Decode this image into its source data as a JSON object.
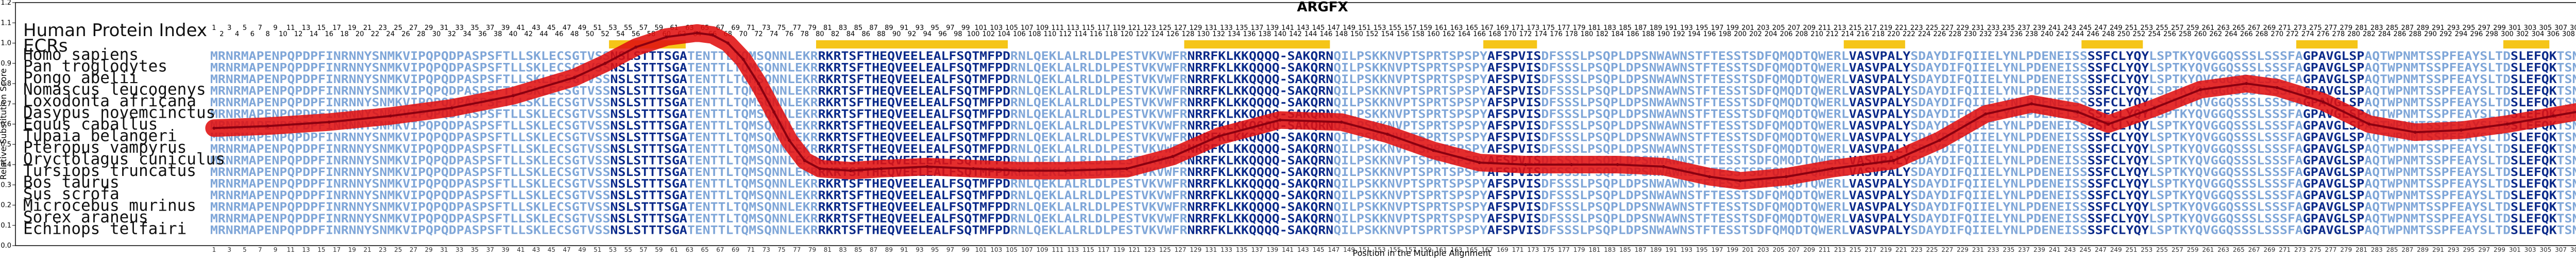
{
  "chart_data": {
    "type": "line",
    "title": "ARGFX",
    "xlabel": "Position in the Multiple Alignment",
    "ylabel": "Relative Substitution Score",
    "ylim": [
      0.0,
      1.2
    ],
    "yticks": [
      "0.0",
      "0.1",
      "0.2",
      "0.3",
      "0.4",
      "0.5",
      "0.6",
      "0.7",
      "0.8",
      "0.9",
      "1.0",
      "1.1",
      "1.2"
    ],
    "xlim": [
      1,
      316
    ],
    "header_labels": [
      "Human Protein Index",
      "ECRs"
    ],
    "species": [
      "Homo sapiens",
      "Pan troglodytes",
      "Pongo abelii",
      "Nomascus leucogenys",
      "Loxodonta africana",
      "Dasypus novemcinctus",
      "Equus caballus",
      "Tupaia belangeri",
      "Pteropus vampyrus",
      "Oryctolagus cuniculus",
      "Tursiops truncatus",
      "Bos taurus",
      "Sus scrofa",
      "Microcebus murinus",
      "Sorex araneus",
      "Echinops telfairi"
    ],
    "ecr_regions": [
      [
        53,
        62
      ],
      [
        80,
        104
      ],
      [
        128,
        146
      ],
      [
        167,
        173
      ],
      [
        214,
        221
      ],
      [
        245,
        252
      ],
      [
        273,
        280
      ],
      [
        300,
        305
      ]
    ],
    "series": [
      {
        "color": "#e01010",
        "x": [
          1,
          8,
          16,
          24,
          32,
          40,
          48,
          52,
          56,
          60,
          64,
          66,
          68,
          70,
          72,
          74,
          76,
          78,
          80,
          84,
          88,
          94,
          100,
          106,
          112,
          120,
          126,
          132,
          140,
          148,
          154,
          160,
          166,
          172,
          178,
          184,
          190,
          196,
          200,
          206,
          212,
          216,
          220,
          226,
          232,
          238,
          244,
          248,
          254,
          260,
          266,
          270,
          276,
          282,
          288,
          294,
          300,
          306,
          312,
          316
        ],
        "y": [
          0.58,
          0.59,
          0.61,
          0.64,
          0.68,
          0.74,
          0.83,
          0.9,
          0.98,
          1.03,
          1.05,
          1.04,
          1.0,
          0.92,
          0.8,
          0.66,
          0.52,
          0.42,
          0.38,
          0.37,
          0.38,
          0.39,
          0.38,
          0.37,
          0.37,
          0.38,
          0.44,
          0.54,
          0.62,
          0.61,
          0.55,
          0.47,
          0.41,
          0.4,
          0.4,
          0.4,
          0.39,
          0.34,
          0.32,
          0.34,
          0.38,
          0.4,
          0.42,
          0.52,
          0.65,
          0.7,
          0.66,
          0.6,
          0.68,
          0.77,
          0.8,
          0.78,
          0.71,
          0.6,
          0.56,
          0.57,
          0.6,
          0.64,
          0.68,
          0.7
        ]
      }
    ],
    "sequences": [
      "MRNRMAPENPQPDPFINRNNYSNMKVIPQPQDPASPSFTLLSKLECSGTVSSNSLSTTTSGATENTTLTQMSQNNLEKRRKRTSFTHEQVEELEALFSQTMFPDRNLQEKLALRLDLPESTVKVWFRNRRFKLKKQQQQ-SAKQRNQILPSKKNVPTSPRTSPSPYAFSPVISDFSSSLPSQPLDPSNWAWNSTFTESSTSDFQMQDTQWERLVASVPALYSDAYDIFQIIELYNLPDENEISSSSFCLYQYLSPTKYQVGGQSSSLSSSFAGPAVGLSPAQTWPNMTSSPFEAYSLTDSLEFQKTSNMVDLGFL",
      "MRNRMAPENPQPDPFINRNNYSNMKVIPQPQDPASPSFTLLSKLECSGTVSSNSLSTTTSGATENTTLTQMSQNNLEKRRKRTSFTHEQVEELEALFSQTMFPDRNLQEKLALRLDLPESTVKVWFRNRRFKLKKQQQQ-SAKQRNQILPSKKNVPTSPRTSPSPYAFSPVISDFSSSLPSQPLDPSNWAWNSTFTESSTSDFQMQDTQWERLVASVPALYSDAYDIFQIIELYNLPDENEISSSSFCLYQYLSPTKYQVGGQSSSLSSSFAGPAVGLSPAQTWPNMTSSPFEAYSLTDSLEFQKTSNMVDLGFL",
      "MRNRMAPENPQPDPFINRNNYSNMKVIPQPQDPASPSFTLLSKLECSGTVSSNSLSTTTSGATENTTLTQMSQNNLEKRRKRTSFTHEQVEELEALFSQTMFPDRNLQEKLALRLDLPESTVKVWFRNRRFKLKKQQQQ-SAKQRNQILPSKKNVPTSPRTSPSPYAFSPVISDFSSSLPSQPLDPSNWAWNSTFTESSTSDFQMQDTQWERLVASVPALYSDAYDIFQIIELYNLPDENEISSSSFCLYQYLSPTKYQVGGQSSSLSSSFAGPAVGLSPAQTWPNMTSSPFEAYSLTDSLEFQKTSNMVDLGFL",
      "MRNRMAPENPQPDPFINRNNYSNMKVIPQPQDPASPSFTLLSKLECSGTVSSNSLSTTTSGATENTTLTQMSQNNLEKRRKRTSFTHEQVEELEALFSQTMFPDRNLQEKLALRLDLPESTVKVWFRNRRFKLKKQQQQ-SAKQRNQILPSKKNVPTSPRTSPSPYAFSPVISDFSSSLPSQPLDPSNWAWNSTFTESSTSDFQMQDTQWERLVASVPALYSDAYDIFQIIELYNLPDENEISSSSFCLYQYLSPTKYQVGGQSSSLSSSFAGPAVGLSPAQTWPNMTSSPFEAYSLTDSLEFQKTSNMVDLGFL",
      "MRNRMAPENPQPDPFINRNNYSNMKVIPQPQDPASPSFTLLSKLECSGTVSSNSLSTTTSGATENTTLTQMSQNNLEKRRKRTSFTHEQVEELEALFSQTMFPDRNLQEKLALRLDLPESTVKVWFRNRRFKLKKQQQQ-SAKQRNQILPSKKNVPTSPRTSPSPYAFSPVISDFSSSLPSQPLDPSNWAWNSTFTESSTSDFQMQDTQWERLVASVPALYSDAYDIFQIIELYNLPDENEISSSSFCLYQYLSPTKYQVGGQSSSLSSSFAGPAVGLSPAQTWPNMTSSPFEAYSLTDSLEFQKTSNMVDLGFL",
      "MRNRMAPENPQPDPFINRNNYSNMKVIPQPQDPASPSFTLLSKLECSGTVSSNSLSTTTSGATENTTLTQMSQNNLEKRRKRTSFTHEQVEELEALFSQTMFPDRNLQEKLALRLDLPESTVKVWFRNRRFKLKKQQQQ-SAKQRNQILPSKKNVPTSPRTSPSPYAFSPVISDFSSSLPSQPLDPSNWAWNSTFTESSTSDFQMQDTQWERLVASVPALYSDAYDIFQIIELYNLPDENEISSSSFCLYQYLSPTKYQVGGQSSSLSSSFAGPAVGLSPAQTWPNMTSSPFEAYSLTDSLEFQKTSNMVDLGFL",
      "MRNRMAPENPQPDPFINRNNYSNMKVIPQPQDPASPSFTLLSKLECSGTVSSNSLSTTTSGATENTTLTQMSQNNLEKRRKRTSFTHEQVEELEALFSQTMFPDRNLQEKLALRLDLPESTVKVWFRNRRFKLKKQQQQ-SAKQRNQILPSKKNVPTSPRTSPSPYAFSPVISDFSSSLPSQPLDPSNWAWNSTFTESSTSDFQMQDTQWERLVASVPALYSDAYDIFQIIELYNLPDENEISSSSFCLYQYLSPTKYQVGGQSSSLSSSFAGPAVGLSPAQTWPNMTSSPFEAYSLTDSLEFQKTSNMVDLGFL",
      "MRNRMAPENPQPDPFINRNNYSNMKVIPQPQDPASPSFTLLSKLECSGTVSSNSLSTTTSGATENTTLTQMSQNNLEKRRKRTSFTHEQVEELEALFSQTMFPDRNLQEKLALRLDLPESTVKVWFRNRRFKLKKQQQQ-SAKQRNQILPSKKNVPTSPRTSPSPYAFSPVISDFSSSLPSQPLDPSNWAWNSTFTESSTSDFQMQDTQWERLVASVPALYSDAYDIFQIIELYNLPDENEISSSSFCLYQYLSPTKYQVGGQSSSLSSSFAGPAVGLSPAQTWPNMTSSPFEAYSLTDSLEFQKTSNMVDLGFL",
      "MRNRMAPENPQPDPFINRNNYSNMKVIPQPQDPASPSFTLLSKLECSGTVSSNSLSTTTSGATENTTLTQMSQNNLEKRRKRTSFTHEQVEELEALFSQTMFPDRNLQEKLALRLDLPESTVKVWFRNRRFKLKKQQQQ-SAKQRNQILPSKKNVPTSPRTSPSPYAFSPVISDFSSSLPSQPLDPSNWAWNSTFTESSTSDFQMQDTQWERLVASVPALYSDAYDIFQIIELYNLPDENEISSSSFCLYQYLSPTKYQVGGQSSSLSSSFAGPAVGLSPAQTWPNMTSSPFEAYSLTDSLEFQKTSNMVDLGFL",
      "MRNRMAPENPQPDPFINRNNYSNMKVIPQPQDPASPSFTLLSKLECSGTVSSNSLSTTTSGATENTTLTQMSQNNLEKRRKRTSFTHEQVEELEALFSQTMFPDRNLQEKLALRLDLPESTVKVWFRNRRFKLKKQQQQ-SAKQRNQILPSKKNVPTSPRTSPSPYAFSPVISDFSSSLPSQPLDPSNWAWNSTFTESSTSDFQMQDTQWERLVASVPALYSDAYDIFQIIELYNLPDENEISSSSFCLYQYLSPTKYQVGGQSSSLSSSFAGPAVGLSPAQTWPNMTSSPFEAYSLTDSLEFQKTSNMVDLGFL",
      "MRNRMAPENPQPDPFINRNNYSNMKVIPQPQDPASPSFTLLSKLECSGTVSSNSLSTTTSGATENTTLTQMSQNNLEKRRKRTSFTHEQVEELEALFSQTMFPDRNLQEKLALRLDLPESTVKVWFRNRRFKLKKQQQQ-SAKQRNQILPSKKNVPTSPRTSPSPYAFSPVISDFSSSLPSQPLDPSNWAWNSTFTESSTSDFQMQDTQWERLVASVPALYSDAYDIFQIIELYNLPDENEISSSSFCLYQYLSPTKYQVGGQSSSLSSSFAGPAVGLSPAQTWPNMTSSPFEAYSLTDSLEFQKTSNMVDLGFL",
      "MRNRMAPENPQPDPFINRNNYSNMKVIPQPQDPASPSFTLLSKLECSGTVSSNSLSTTTSGATENTTLTQMSQNNLEKRRKRTSFTHEQVEELEALFSQTMFPDRNLQEKLALRLDLPESTVKVWFRNRRFKLKKQQQQ-SAKQRNQILPSKKNVPTSPRTSPSPYAFSPVISDFSSSLPSQPLDPSNWAWNSTFTESSTSDFQMQDTQWERLVASVPALYSDAYDIFQIIELYNLPDENEISSSSFCLYQYLSPTKYQVGGQSSSLSSSFAGPAVGLSPAQTWPNMTSSPFEAYSLTDSLEFQKTSNMVDLGFL",
      "MRNRMAPENPQPDPFINRNNYSNMKVIPQPQDPASPSFTLLSKLECSGTVSSNSLSTTTSGATENTTLTQMSQNNLEKRRKRTSFTHEQVEELEALFSQTMFPDRNLQEKLALRLDLPESTVKVWFRNRRFKLKKQQQQ-SAKQRNQILPSKKNVPTSPRTSPSPYAFSPVISDFSSSLPSQPLDPSNWAWNSTFTESSTSDFQMQDTQWERLVASVPALYSDAYDIFQIIELYNLPDENEISSSSFCLYQYLSPTKYQVGGQSSSLSSSFAGPAVGLSPAQTWPNMTSSPFEAYSLTDSLEFQKTSNMVDLGFL",
      "MRNRMAPENPQPDPFINRNNYSNMKVIPQPQDPASPSFTLLSKLECSGTVSSNSLSTTTSGATENTTLTQMSQNNLEKRRKRTSFTHEQVEELEALFSQTMFPDRNLQEKLALRLDLPESTVKVWFRNRRFKLKKQQQQ-SAKQRNQILPSKKNVPTSPRTSPSPYAFSPVISDFSSSLPSQPLDPSNWAWNSTFTESSTSDFQMQDTQWERLVASVPALYSDAYDIFQIIELYNLPDENEISSSSFCLYQYLSPTKYQVGGQSSSLSSSFAGPAVGLSPAQTWPNMTSSPFEAYSLTDSLEFQKTSNMVDLGFL",
      "MRNRMAPENPQPDPFINRNNYSNMKVIPQPQDPASPSFTLLSKLECSGTVSSNSLSTTTSGATENTTLTQMSQNNLEKRRKRTSFTHEQVEELEALFSQTMFPDRNLQEKLALRLDLPESTVKVWFRNRRFKLKKQQQQ-SAKQRNQILPSKKNVPTSPRTSPSPYAFSPVISDFSSSLPSQPLDPSNWAWNSTFTESSTSDFQMQDTQWERLVASVPALYSDAYDIFQIIELYNLPDENEISSSSFCLYQYLSPTKYQVGGQSSSLSSSFAGPAVGLSPAQTWPNMTSSPFEAYSLTDSLEFQKTSNMVDLGFL",
      "MRNRMAPENPQPDPFINRNNYSNMKVIPQPQDPASPSFTLLSKLECSGTVSSNSLSTTTSGATENTTLTQMSQNNLEKRRKRTSFTHEQVEELEALFSQTMFPDRNLQEKLALRLDLPESTVKVWFRNRRFKLKKQQQQ-SAKQRNQILPSKKNVPTSPRTSPSPYAFSPVISDFSSSLPSQPLDPSNWAWNSTFTESSTSDFQMQDTQWERLVASVPALYSDAYDIFQIIELYNLPDENEISSSSFCLYQYLSPTKYQVGGQSSSLSSSFAGPAVGLSPAQTWPNMTSSPFEAYSLTDSLEFQKTSNMVDLGFL"
    ],
    "colors": {
      "line": "#e01010",
      "line_core": "#8a0010",
      "ecr": "#f5c518",
      "seq_conserved": "#0a2a8a",
      "seq_variable": "#7fa6d8"
    },
    "grid": false,
    "legend": "none"
  }
}
